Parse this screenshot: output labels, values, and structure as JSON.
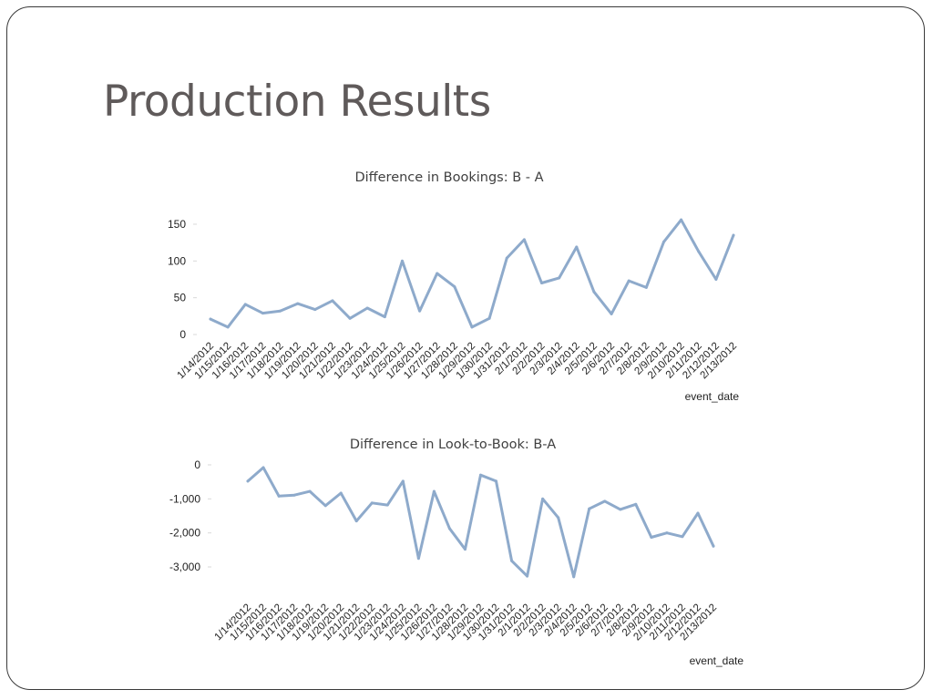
{
  "slide": {
    "title": "Production Results"
  },
  "chart_data": [
    {
      "type": "line",
      "title": "Difference in Bookings: B - A",
      "xlabel": "event_date",
      "ylabel": "",
      "ylim": [
        0,
        150
      ],
      "yticks": [
        0,
        50,
        100,
        150
      ],
      "ytick_labels": [
        "0",
        "50",
        "100",
        "150"
      ],
      "color": "#8eaacb",
      "x": [
        "1/14/2012",
        "1/15/2012",
        "1/16/2012",
        "1/17/2012",
        "1/18/2012",
        "1/19/2012",
        "1/20/2012",
        "1/21/2012",
        "1/22/2012",
        "1/23/2012",
        "1/24/2012",
        "1/25/2012",
        "1/26/2012",
        "1/27/2012",
        "1/28/2012",
        "1/29/2012",
        "1/30/2012",
        "1/31/2012",
        "2/1/2012",
        "2/2/2012",
        "2/3/2012",
        "2/4/2012",
        "2/5/2012",
        "2/6/2012",
        "2/7/2012",
        "2/8/2012",
        "2/9/2012",
        "2/10/2012",
        "2/11/2012",
        "2/12/2012",
        "2/13/2012"
      ],
      "values": [
        21,
        10,
        41,
        29,
        32,
        42,
        34,
        46,
        22,
        36,
        24,
        100,
        32,
        83,
        65,
        10,
        22,
        104,
        129,
        70,
        77,
        119,
        58,
        28,
        73,
        64,
        126,
        156,
        113,
        75,
        135
      ]
    },
    {
      "type": "line",
      "title": "Difference in Look-to-Book: B-A",
      "xlabel": "event_date",
      "ylabel": "",
      "ylim": [
        -3000,
        0
      ],
      "yticks": [
        0,
        -1000,
        -2000,
        -3000
      ],
      "ytick_labels": [
        "0",
        "-1,000",
        "-2,000",
        "-3,000"
      ],
      "color": "#8eaacb",
      "x": [
        "1/14/2012",
        "1/15/2012",
        "1/16/2012",
        "1/17/2012",
        "1/18/2012",
        "1/19/2012",
        "1/20/2012",
        "1/21/2012",
        "1/22/2012",
        "1/23/2012",
        "1/24/2012",
        "1/25/2012",
        "1/26/2012",
        "1/27/2012",
        "1/28/2012",
        "1/29/2012",
        "1/30/2012",
        "1/31/2012",
        "2/1/2012",
        "2/2/2012",
        "2/3/2012",
        "2/4/2012",
        "2/5/2012",
        "2/6/2012",
        "2/7/2012",
        "2/8/2012",
        "2/9/2012",
        "2/10/2012",
        "2/11/2012",
        "2/12/2012",
        "2/13/2012"
      ],
      "values": [
        -480,
        -80,
        -920,
        -890,
        -780,
        -1200,
        -830,
        -1650,
        -1120,
        -1180,
        -480,
        -2750,
        -780,
        -1870,
        -2480,
        -300,
        -480,
        -2820,
        -3270,
        -1000,
        -1550,
        -3290,
        -1290,
        -1070,
        -1310,
        -1160,
        -2130,
        -2000,
        -2110,
        -1420,
        -2390
      ]
    }
  ]
}
